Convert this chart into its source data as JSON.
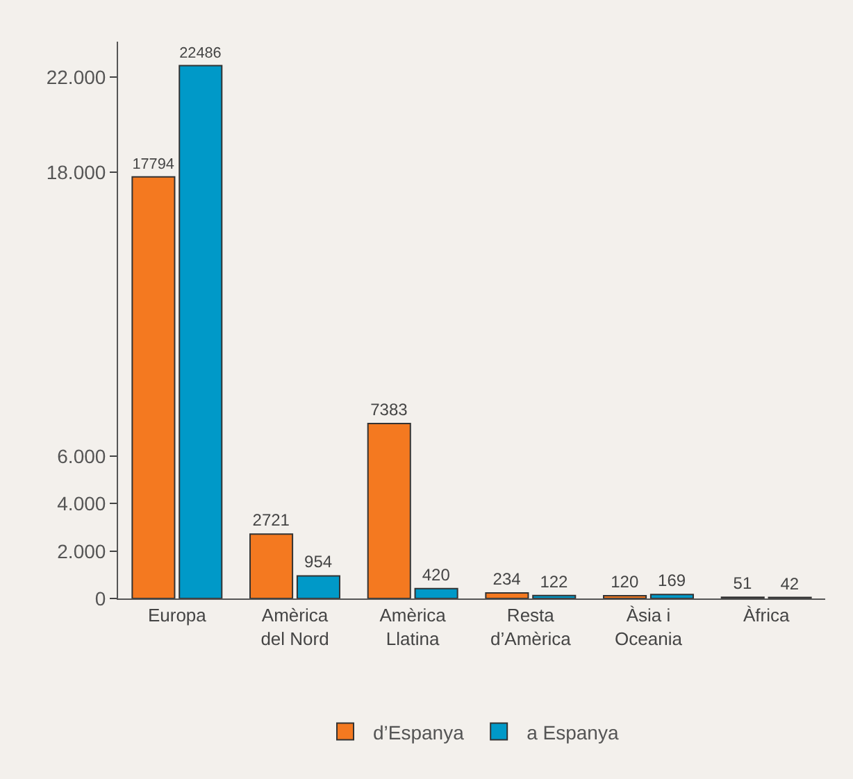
{
  "chart_data": {
    "type": "bar",
    "categories": [
      "Europa",
      "Amèrica\ndel Nord",
      "Amèrica\nLlatina",
      "Resta\nd’Amèrica",
      "Àsia i\nOceania",
      "Àfrica"
    ],
    "series": [
      {
        "name": "d’Espanya",
        "color": "#f47920",
        "values": [
          17794,
          2721,
          7383,
          234,
          120,
          51
        ]
      },
      {
        "name": "a Espanya",
        "color": "#0099c8",
        "values": [
          22486,
          954,
          420,
          122,
          169,
          42
        ]
      }
    ],
    "ylim": [
      0,
      23500
    ],
    "yticks": [
      {
        "value": 0,
        "label": "0"
      },
      {
        "value": 2000,
        "label": "2.000"
      },
      {
        "value": 4000,
        "label": "4.000"
      },
      {
        "value": 6000,
        "label": "6.000"
      },
      {
        "value": 18000,
        "label": "18.000"
      },
      {
        "value": 22000,
        "label": "22.000"
      }
    ],
    "data_labels": true,
    "legend": "bottom",
    "grid": false
  }
}
